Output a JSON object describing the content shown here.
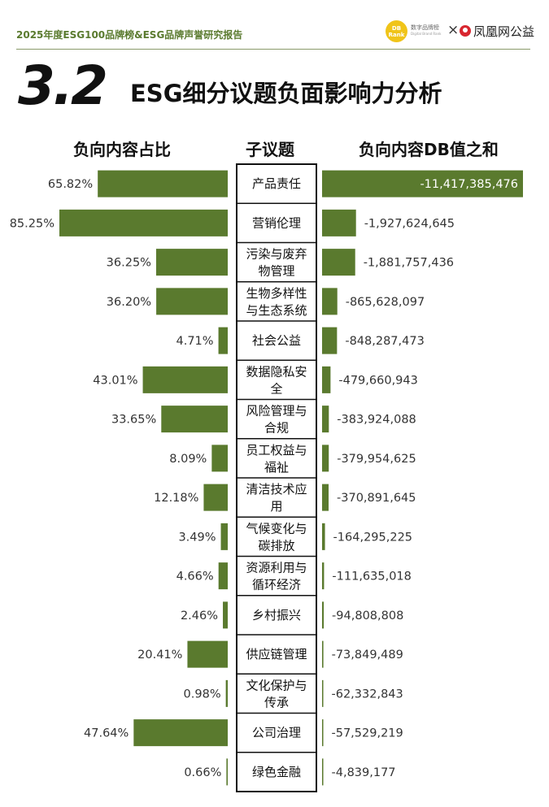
{
  "header": {
    "report_title": "2025年度ESG100品牌榜&ESG品牌声誉研究报告",
    "logo_db_badge": "DB Rank",
    "logo_db_name": "数字品牌榜",
    "logo_db_sub": "Digital Brand Rank",
    "logo_cross": "×",
    "logo_partner": "凤凰网公益"
  },
  "section": {
    "number": "3.2",
    "title": "ESG细分议题负面影响力分析"
  },
  "colors": {
    "bar": "#5a7a2e",
    "accent_text": "#5a7a2e"
  },
  "chart_data": {
    "type": "bar",
    "column_headers": {
      "left": "负向内容占比",
      "center": "子议题",
      "right": "负向内容DB值之和"
    },
    "categories": [
      [
        "产品责任"
      ],
      [
        "营销伦理"
      ],
      [
        "污染与废弃",
        "物管理"
      ],
      [
        "生物多样性",
        "与生态系统"
      ],
      [
        "社会公益"
      ],
      [
        "数据隐私安",
        "全"
      ],
      [
        "风险管理与",
        "合规"
      ],
      [
        "员工权益与",
        "福祉"
      ],
      [
        "清洁技术应",
        "用"
      ],
      [
        "气候变化与",
        "碳排放"
      ],
      [
        "资源利用与",
        "循环经济"
      ],
      [
        "乡村振兴"
      ],
      [
        "供应链管理"
      ],
      [
        "文化保护与",
        "传承"
      ],
      [
        "公司治理"
      ],
      [
        "绿色金融"
      ]
    ],
    "series": [
      {
        "values": [
          65.82,
          85.25,
          36.25,
          36.2,
          4.71,
          43.01,
          33.65,
          8.09,
          12.18,
          3.49,
          4.66,
          2.46,
          20.41,
          0.98,
          47.64,
          0.66
        ],
        "labels": [
          "65.82%",
          "85.25%",
          "36.25%",
          "36.20%",
          "4.71%",
          "43.01%",
          "33.65%",
          "8.09%",
          "12.18%",
          "3.49%",
          "4.66%",
          "2.46%",
          "20.41%",
          "0.98%",
          "47.64%",
          "0.66%"
        ]
      },
      {
        "values": [
          -11417385476,
          -1927624645,
          -1881757436,
          -865628097,
          -848287473,
          -479660943,
          -383924088,
          -379954625,
          -370891645,
          -164295225,
          -111635018,
          -94808808,
          -73849489,
          -62332843,
          -57529219,
          -4839177
        ],
        "labels": [
          "-11,417,385,476",
          "-1,927,624,645",
          "-1,881,757,436",
          "-865,628,097",
          "-848,287,473",
          "-479,660,943",
          "-383,924,088",
          "-379,954,625",
          "-370,891,645",
          "-164,295,225",
          "-111,635,018",
          "-94,808,808",
          "-73,849,489",
          "-62,332,843",
          "-57,529,219",
          "-4,839,177"
        ]
      }
    ]
  }
}
